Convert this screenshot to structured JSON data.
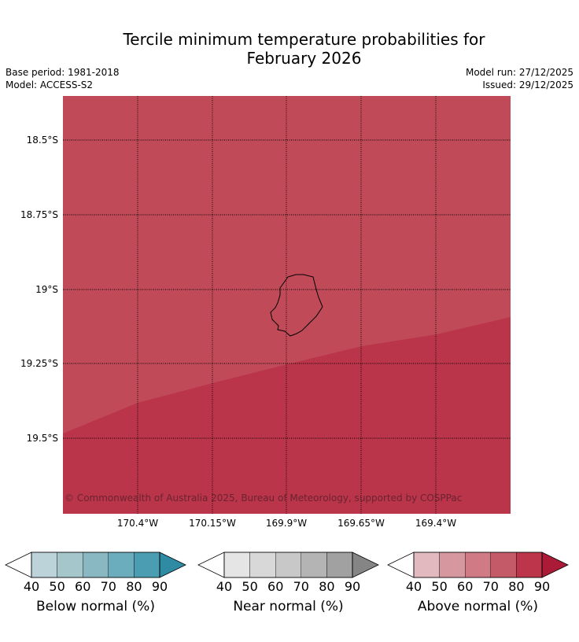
{
  "title_line1": "Tercile minimum temperature probabilities for",
  "title_line2": "February 2026",
  "base_period": "Base period: 1981-2018",
  "model": "Model: ACCESS-S2",
  "model_run": "Model run: 27/12/2025",
  "issued": "Issued: 29/12/2025",
  "copyright": "© Commonwealth of Australia 2025, Bureau of Meteorology, supported by COSPPac",
  "map": {
    "lat_labels": [
      "18.5°S",
      "18.75°S",
      "19°S",
      "19.25°S",
      "19.5°S"
    ],
    "lon_labels": [
      "170.4°W",
      "170.15°W",
      "169.9°W",
      "169.65°W",
      "169.4°W"
    ],
    "region_colors": {
      "upper": "#c04a58",
      "lower": "#ba344a"
    },
    "upper_category": "Above normal",
    "upper_band": "70-80",
    "lower_band": "80-90"
  },
  "colorbars": [
    {
      "label": "Below normal (%)",
      "ticks": [
        "40",
        "50",
        "60",
        "70",
        "80",
        "90"
      ],
      "colors": [
        "#ffffff",
        "#bdd3da",
        "#a5c6cb",
        "#89b7c2",
        "#6badbd",
        "#4b9db1",
        "#2f8ba4"
      ]
    },
    {
      "label": "Near normal (%)",
      "ticks": [
        "40",
        "50",
        "60",
        "70",
        "80",
        "90"
      ],
      "colors": [
        "#ffffff",
        "#e5e5e5",
        "#d8d8d8",
        "#c8c8c8",
        "#b4b4b4",
        "#a1a1a1",
        "#858585"
      ]
    },
    {
      "label": "Above normal (%)",
      "ticks": [
        "40",
        "50",
        "60",
        "70",
        "80",
        "90"
      ],
      "colors": [
        "#ffffff",
        "#e2b9bf",
        "#d6979f",
        "#cf7a84",
        "#c45a67",
        "#bc354b",
        "#ab1b38"
      ]
    }
  ]
}
